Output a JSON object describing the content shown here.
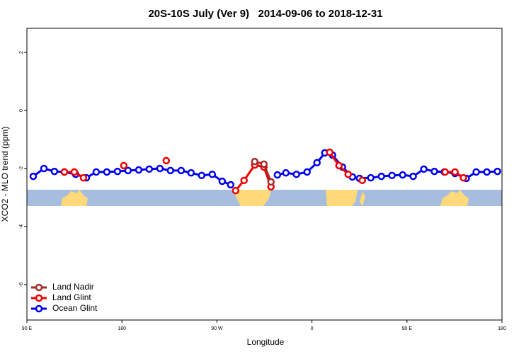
{
  "chart_data": {
    "type": "line",
    "title": "20S-10S July (Ver 9)   2014-09-06 to 2018-12-31",
    "x_label": "Longitude",
    "y_label": "XCO2 - MLO trend (ppm)",
    "xlim": [
      90,
      540
    ],
    "xticks": [
      {
        "value": 90,
        "label": "90 E"
      },
      {
        "value": 180,
        "label": "180"
      },
      {
        "value": 270,
        "label": "90 W"
      },
      {
        "value": 360,
        "label": "0"
      },
      {
        "value": 450,
        "label": "90 E"
      },
      {
        "value": 540,
        "label": "180"
      }
    ],
    "ylim": [
      -7.22,
      2.83
    ],
    "yticks": [
      2,
      0,
      -2,
      -4,
      -6
    ],
    "legend": "bottom-left",
    "series": [
      {
        "name": "Land Nadir",
        "color": "#a52a2a",
        "x": [
          305.8,
          314.5,
          321.2
        ],
        "values": [
          -1.76,
          -1.85,
          -2.46
        ]
      },
      {
        "name": "Land Glint",
        "color": "#ee0000",
        "x": [
          125.5,
          134.9,
          143.6,
          null,
          181.8,
          null,
          222.0,
          null,
          287.7,
          295.7,
          305.8,
          314.5,
          321.2,
          null,
          376.8,
          385.6,
          394.3,
          null,
          407.7,
          null,
          486.1,
          495.5,
          503.5
        ],
        "values": [
          -2.12,
          -2.12,
          -2.32,
          null,
          -1.9,
          null,
          -1.73,
          null,
          -2.76,
          -2.41,
          -1.88,
          -1.95,
          -2.63,
          null,
          -1.44,
          -1.9,
          -2.2,
          null,
          -2.41,
          null,
          -2.12,
          -2.12,
          -2.32
        ]
      },
      {
        "name": "Ocean Glint",
        "color": "#0000ee",
        "x": [
          96.0,
          106.1,
          116.1,
          125.5,
          136.2,
          146.3,
          155.7,
          165.7,
          175.8,
          185.8,
          195.9,
          205.9,
          216.0,
          226.0,
          236.1,
          245.5,
          255.5,
          265.6,
          275.0,
          283.0,
          null,
          327.3,
          335.3,
          345.3,
          355.4,
          364.8,
          372.2,
          379.5,
          388.9,
          398.3,
          405.0,
          415.7,
          425.8,
          435.8,
          445.9,
          455.9,
          466.0,
          476.0,
          485.4,
          495.5,
          506.2,
          515.6,
          525.7,
          535.7
        ],
        "values": [
          -2.27,
          -2.0,
          -2.1,
          -2.12,
          -2.2,
          -2.32,
          -2.12,
          -2.12,
          -2.1,
          -2.07,
          -2.05,
          -2.02,
          -2.0,
          -2.07,
          -2.07,
          -2.15,
          -2.24,
          -2.2,
          -2.44,
          -2.56,
          null,
          -2.22,
          -2.15,
          -2.2,
          -2.12,
          -1.8,
          -1.46,
          -1.54,
          -1.95,
          -2.29,
          -2.34,
          -2.32,
          -2.27,
          -2.24,
          -2.22,
          -2.27,
          -2.02,
          -2.1,
          -2.12,
          -2.17,
          -2.34,
          -2.12,
          -2.12,
          -2.1
        ]
      }
    ]
  }
}
